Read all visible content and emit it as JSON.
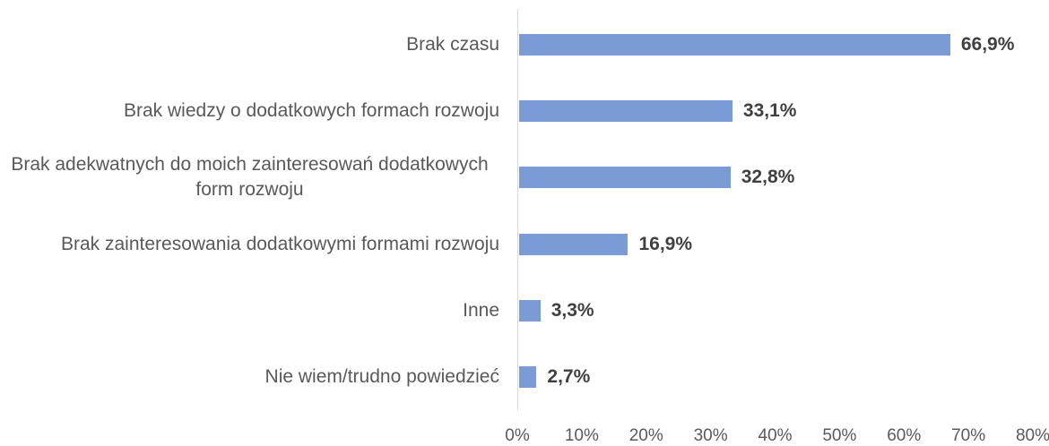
{
  "chart_data": {
    "type": "bar",
    "orientation": "horizontal",
    "categories": [
      "Brak czasu",
      "Brak wiedzy o dodatkowych formach rozwoju",
      "Brak adekwatnych do moich zainteresowań dodatkowych form rozwoju",
      "Brak zainteresowania dodatkowymi formami rozwoju",
      "Inne",
      "Nie wiem/trudno powiedzieć"
    ],
    "values": [
      66.9,
      33.1,
      32.8,
      16.9,
      3.3,
      2.7
    ],
    "value_labels": [
      "66,9%",
      "33,1%",
      "32,8%",
      "16,9%",
      "3,3%",
      "2,7%"
    ],
    "color": "#7a9bd5",
    "xlim": [
      0,
      80
    ],
    "xticks": [
      {
        "value": 0,
        "label": "0%"
      },
      {
        "value": 10,
        "label": "10%"
      },
      {
        "value": 20,
        "label": "20%"
      },
      {
        "value": 30,
        "label": "30%"
      },
      {
        "value": 40,
        "label": "40%"
      },
      {
        "value": 50,
        "label": "50%"
      },
      {
        "value": 60,
        "label": "60%"
      },
      {
        "value": 70,
        "label": "70%"
      },
      {
        "value": 80,
        "label": "80%"
      }
    ],
    "grid": false
  }
}
